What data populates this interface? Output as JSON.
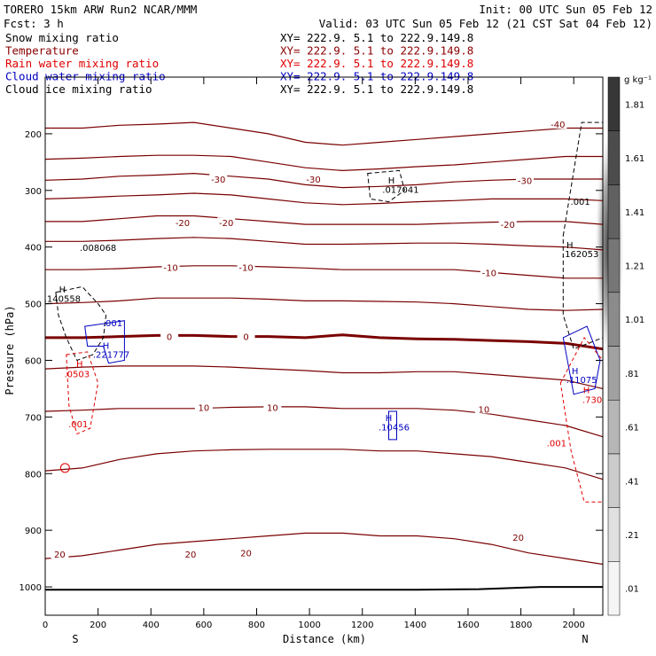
{
  "header": {
    "model": "TORERO  15km ARW   Run2    NCAR/MMM",
    "init": "Init: 00 UTC Sun 05 Feb 12",
    "fcst": "Fcst:    3 h",
    "valid": "Valid: 03 UTC Sun 05 Feb 12 (21 CST Sat 04 Feb 12)"
  },
  "fields": [
    {
      "name": "Snow mixing ratio",
      "xy": "XY= 222.9.  5.1 to 222.9.149.8",
      "color": "#000000"
    },
    {
      "name": "Temperature",
      "xy": "XY= 222.9.  5.1 to 222.9.149.8",
      "color": "#8b0000"
    },
    {
      "name": "Rain water mixing ratio",
      "xy": "XY= 222.9.  5.1 to 222.9.149.8",
      "color": "#e00000"
    },
    {
      "name": "Cloud water mixing ratio",
      "xy": "XY= 222.9.  5.1 to 222.9.149.8",
      "color": "#0000c0"
    },
    {
      "name": "Cloud ice mixing ratio",
      "xy": "XY= 222.9.  5.1 to 222.9.149.8",
      "color": "#000000"
    }
  ],
  "chart_data": {
    "type": "cross-section contour",
    "xlabel": "Distance (km)",
    "ylabel": "Pressure (hPa)",
    "x_ticks": [
      0,
      200,
      400,
      600,
      800,
      1000,
      1200,
      1400,
      1600,
      1800,
      2000
    ],
    "y_ticks": [
      200,
      300,
      400,
      500,
      600,
      700,
      800,
      900,
      1000
    ],
    "xlim": [
      0,
      2110
    ],
    "ylim": [
      1050,
      100
    ],
    "end_labels": {
      "left": "S",
      "right": "N"
    },
    "colorbar": {
      "units": "g kg⁻¹",
      "levels": [
        ".01",
        ".21",
        ".41",
        ".61",
        ".81",
        "1.01",
        "1.21",
        "1.41",
        "1.61",
        "1.81"
      ]
    },
    "temperature_isotherms_C": [
      {
        "value": -40,
        "p": [
          190,
          190,
          185,
          183,
          180,
          190,
          200,
          215,
          220,
          215,
          210,
          205,
          200,
          195,
          190,
          190
        ]
      },
      {
        "value": -35,
        "p": [
          245,
          243,
          240,
          238,
          238,
          240,
          250,
          260,
          265,
          262,
          258,
          255,
          250,
          245,
          240,
          240
        ]
      },
      {
        "value": -30,
        "p": [
          282,
          280,
          275,
          273,
          270,
          275,
          280,
          290,
          295,
          293,
          290,
          285,
          282,
          280,
          280,
          280
        ]
      },
      {
        "value": -25,
        "p": [
          315,
          313,
          310,
          308,
          305,
          308,
          315,
          322,
          325,
          323,
          320,
          318,
          315,
          315,
          315,
          318
        ]
      },
      {
        "value": -20,
        "p": [
          355,
          355,
          350,
          345,
          345,
          350,
          355,
          360,
          360,
          360,
          360,
          358,
          356,
          355,
          355,
          360
        ]
      },
      {
        "value": -15,
        "p": [
          390,
          390,
          388,
          385,
          383,
          385,
          390,
          395,
          395,
          394,
          393,
          393,
          395,
          398,
          400,
          405
        ]
      },
      {
        "value": -10,
        "p": [
          440,
          440,
          438,
          435,
          433,
          433,
          435,
          437,
          440,
          440,
          440,
          440,
          445,
          450,
          455,
          455
        ]
      },
      {
        "value": -5,
        "p": [
          500,
          498,
          495,
          490,
          490,
          490,
          492,
          495,
          495,
          496,
          497,
          500,
          505,
          510,
          512,
          510
        ]
      },
      {
        "value": 0,
        "p": [
          560,
          560,
          558,
          556,
          556,
          558,
          558,
          560,
          555,
          560,
          562,
          563,
          565,
          567,
          570,
          580
        ]
      },
      {
        "value": 5,
        "p": [
          615,
          612,
          610,
          610,
          610,
          612,
          615,
          618,
          622,
          622,
          620,
          620,
          625,
          630,
          635,
          650
        ]
      },
      {
        "value": 10,
        "p": [
          690,
          688,
          685,
          685,
          685,
          683,
          682,
          682,
          685,
          685,
          685,
          688,
          695,
          705,
          715,
          735
        ]
      },
      {
        "value": 15,
        "p": [
          795,
          790,
          775,
          765,
          760,
          758,
          757,
          757,
          757,
          760,
          760,
          765,
          770,
          780,
          790,
          810
        ]
      },
      {
        "value": 20,
        "p": [
          950,
          945,
          935,
          925,
          920,
          915,
          910,
          905,
          905,
          910,
          910,
          915,
          925,
          940,
          950,
          960
        ]
      }
    ],
    "temperature_labels": [
      {
        "text": "-40",
        "x": 1940,
        "p": 183
      },
      {
        "text": "-30",
        "x": 655,
        "p": 280
      },
      {
        "text": "-30",
        "x": 1015,
        "p": 280
      },
      {
        "text": "-30",
        "x": 1815,
        "p": 282
      },
      {
        "text": "-20",
        "x": 520,
        "p": 357
      },
      {
        "text": "-20",
        "x": 685,
        "p": 357
      },
      {
        "text": "-20",
        "x": 1750,
        "p": 360
      },
      {
        "text": "-10",
        "x": 475,
        "p": 436
      },
      {
        "text": "-10",
        "x": 760,
        "p": 436
      },
      {
        "text": "-10",
        "x": 1680,
        "p": 445
      },
      {
        "text": "0",
        "x": 470,
        "p": 558
      },
      {
        "text": "0",
        "x": 760,
        "p": 558
      },
      {
        "text": "10",
        "x": 600,
        "p": 683
      },
      {
        "text": "10",
        "x": 860,
        "p": 683
      },
      {
        "text": "10",
        "x": 1660,
        "p": 686
      },
      {
        "text": "20",
        "x": 55,
        "p": 942
      },
      {
        "text": "20",
        "x": 550,
        "p": 942
      },
      {
        "text": "20",
        "x": 760,
        "p": 940
      },
      {
        "text": "20",
        "x": 1790,
        "p": 912
      }
    ],
    "annotations": [
      {
        "text": "H",
        "x": 65,
        "p": 480,
        "color": "#000000"
      },
      {
        "text": ".140558",
        "x": 65,
        "p": 497,
        "color": "#000000"
      },
      {
        "text": ".008068",
        "x": 200,
        "p": 407,
        "color": "#000000"
      },
      {
        "text": ".001",
        "x": 255,
        "p": 540,
        "color": "#0000c0"
      },
      {
        "text": "H",
        "x": 230,
        "p": 580,
        "color": "#0000c0"
      },
      {
        "text": ".221777",
        "x": 250,
        "p": 595,
        "color": "#0000c0"
      },
      {
        "text": "H",
        "x": 130,
        "p": 612,
        "color": "#e00000"
      },
      {
        "text": ".0503",
        "x": 120,
        "p": 630,
        "color": "#e00000"
      },
      {
        "text": ".001",
        "x": 125,
        "p": 718,
        "color": "#e00000"
      },
      {
        "text": "H",
        "x": 1310,
        "p": 288,
        "color": "#000000"
      },
      {
        "text": ".017041",
        "x": 1345,
        "p": 304,
        "color": "#000000"
      },
      {
        "text": "H",
        "x": 1300,
        "p": 707,
        "color": "#0000c0"
      },
      {
        "text": ".10456",
        "x": 1320,
        "p": 724,
        "color": "#0000c0"
      },
      {
        "text": ".001",
        "x": 2025,
        "p": 325,
        "color": "#000000"
      },
      {
        "text": "H",
        "x": 1985,
        "p": 402,
        "color": "#000000"
      },
      {
        "text": ".162053",
        "x": 2025,
        "p": 418,
        "color": "#000000"
      },
      {
        "text": "H",
        "x": 2005,
        "p": 624,
        "color": "#0000c0"
      },
      {
        "text": ".11075",
        "x": 2030,
        "p": 640,
        "color": "#0000c0"
      },
      {
        "text": "H",
        "x": 2048,
        "p": 658,
        "color": "#e00000"
      },
      {
        "text": ".730",
        "x": 2070,
        "p": 675,
        "color": "#e00000"
      },
      {
        "text": ".001",
        "x": 1935,
        "p": 752,
        "color": "#e00000"
      }
    ],
    "terrain_p": [
      1005,
      1005,
      1005,
      1005,
      1005,
      1005,
      1005,
      1004,
      1000,
      1000
    ]
  }
}
